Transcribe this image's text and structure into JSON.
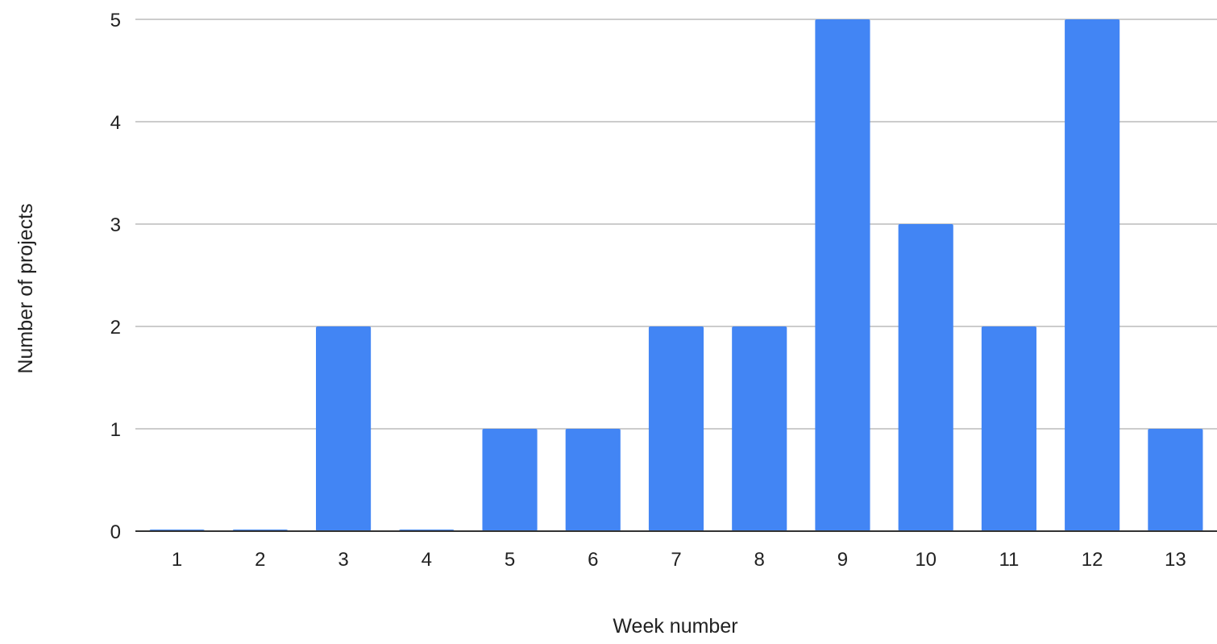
{
  "chart_data": {
    "type": "bar",
    "title": "",
    "xlabel": "Week number",
    "ylabel": "Number of projects",
    "categories": [
      "1",
      "2",
      "3",
      "4",
      "5",
      "6",
      "7",
      "8",
      "9",
      "10",
      "11",
      "12",
      "13"
    ],
    "series": [
      {
        "values": [
          0,
          0,
          2,
          0,
          1,
          1,
          2,
          2,
          5,
          3,
          2,
          5,
          1
        ],
        "color": "#4285f4"
      }
    ],
    "ylim": [
      0,
      5
    ],
    "yticks": [
      0,
      1,
      2,
      3,
      4,
      5
    ],
    "grid": true,
    "legend": "none"
  }
}
